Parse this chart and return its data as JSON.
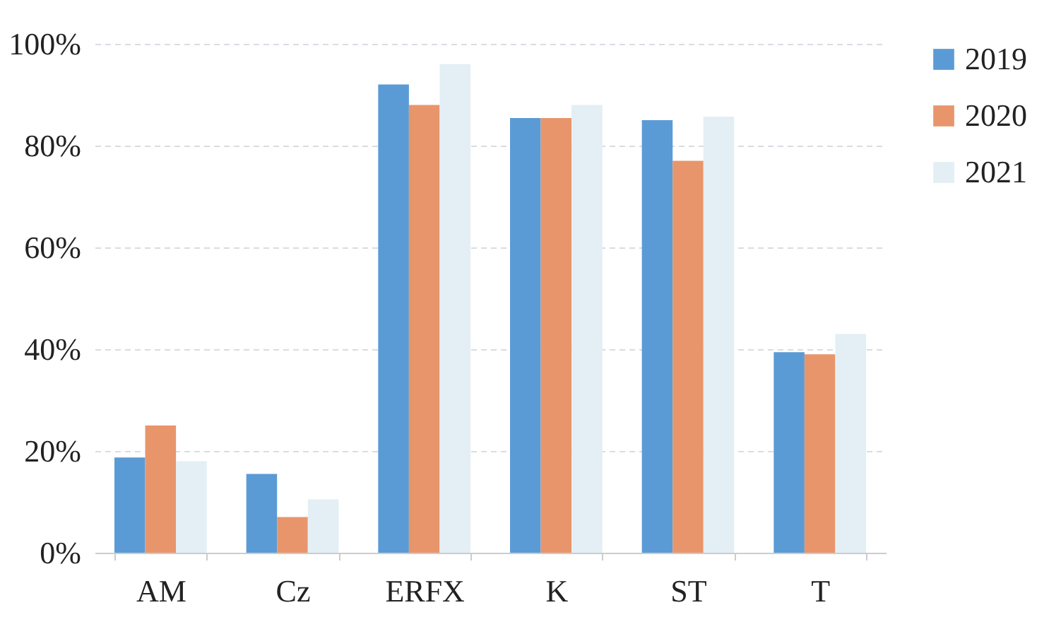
{
  "chart_data": {
    "type": "bar",
    "categories": [
      "AM",
      "Cz",
      "ERFX",
      "K",
      "ST",
      "T"
    ],
    "series": [
      {
        "name": "2019",
        "color": "#5b9bd5",
        "values": [
          18.7,
          15.5,
          92,
          85.4,
          85,
          39.4
        ]
      },
      {
        "name": "2020",
        "color": "#e8956b",
        "values": [
          25,
          7,
          88,
          85.4,
          77,
          39
        ]
      },
      {
        "name": "2021",
        "color": "#e3eff4",
        "values": [
          18,
          10.5,
          96,
          88,
          85.7,
          43
        ]
      }
    ],
    "ylim": [
      0,
      100
    ],
    "yticks": [
      {
        "value": 0,
        "label": "0%"
      },
      {
        "value": 20,
        "label": "20%"
      },
      {
        "value": 40,
        "label": "40%"
      },
      {
        "value": 60,
        "label": "60%"
      },
      {
        "value": 80,
        "label": "80%"
      },
      {
        "value": 100,
        "label": "100%"
      }
    ],
    "grid": "y",
    "legend": "right"
  }
}
